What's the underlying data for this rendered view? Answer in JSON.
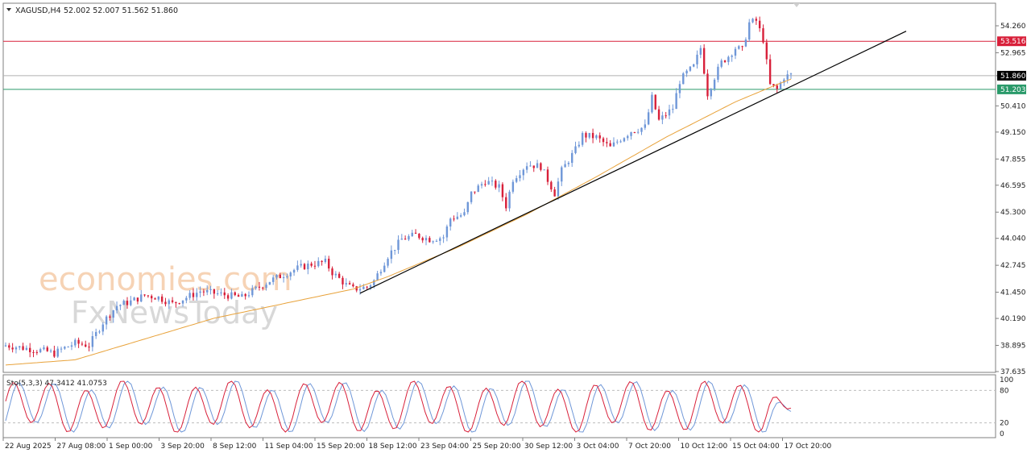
{
  "header": {
    "symbol": "XAGUSD,H4",
    "ohlc": "52.002 52.007 51.562 51.860"
  },
  "watermark": {
    "line1": "economies.com",
    "line2": "FxNewsToday"
  },
  "colors": {
    "bull": "#6f97d8",
    "bear": "#d8203a",
    "ma": "#e8a23a",
    "resistance": "#d8203a",
    "support": "#2a9a6a",
    "current": "#b0b0b0",
    "stoch_main": "#d8203a",
    "stoch_signal": "#6f97d8"
  },
  "chart_data": [
    {
      "type": "candlestick",
      "ylim": [
        37.635,
        55.0
      ],
      "y_ticks": [
        "54.260",
        "52.965",
        "51.860",
        "50.410",
        "49.150",
        "47.855",
        "46.595",
        "45.300",
        "44.040",
        "42.745",
        "41.450",
        "40.190",
        "38.895",
        "37.635"
      ],
      "x_tick_labels": [
        "22 Aug 2025",
        "27 Aug 08:00",
        "1 Sep 00:00",
        "3 Sep 20:00",
        "8 Sep 12:00",
        "11 Sep 04:00",
        "15 Sep 20:00",
        "18 Sep 12:00",
        "23 Sep 04:00",
        "25 Sep 20:00",
        "30 Sep 12:00",
        "3 Oct 04:00",
        "7 Oct 20:00",
        "10 Oct 12:00",
        "15 Oct 04:00",
        "17 Oct 20:00"
      ],
      "current_price": "51.860",
      "resistance_price": "53.516",
      "support_price": "51.203",
      "current_value": 51.86,
      "resistance_value": 53.516,
      "support_value": 51.203,
      "trendline": {
        "from": [
          0,
          41.4
        ],
        "to": [
          206,
          54.0
        ]
      },
      "close_anchors": [
        [
          0,
          38.9
        ],
        [
          8,
          38.7
        ],
        [
          12,
          38.6
        ],
        [
          14,
          38.5
        ],
        [
          16,
          38.7
        ],
        [
          20,
          39.0
        ],
        [
          24,
          38.9
        ],
        [
          28,
          40.0
        ],
        [
          32,
          40.8
        ],
        [
          36,
          41.0
        ],
        [
          40,
          41.3
        ],
        [
          44,
          41.2
        ],
        [
          48,
          40.9
        ],
        [
          52,
          41.2
        ],
        [
          56,
          41.5
        ],
        [
          60,
          41.4
        ],
        [
          64,
          41.3
        ],
        [
          68,
          41.2
        ],
        [
          72,
          41.6
        ],
        [
          76,
          42.0
        ],
        [
          80,
          42.3
        ],
        [
          84,
          42.6
        ],
        [
          88,
          42.8
        ],
        [
          92,
          42.9
        ],
        [
          94,
          42.4
        ],
        [
          98,
          41.8
        ],
        [
          100,
          41.6
        ],
        [
          104,
          41.7
        ],
        [
          106,
          42.0
        ],
        [
          110,
          43.2
        ],
        [
          114,
          44.0
        ],
        [
          118,
          44.2
        ],
        [
          122,
          44.0
        ],
        [
          126,
          44.1
        ],
        [
          128,
          45.0
        ],
        [
          132,
          45.2
        ],
        [
          134,
          46.2
        ],
        [
          138,
          46.8
        ],
        [
          142,
          46.5
        ],
        [
          144,
          45.6
        ],
        [
          146,
          46.9
        ],
        [
          150,
          47.6
        ],
        [
          154,
          47.5
        ],
        [
          158,
          46.2
        ],
        [
          160,
          47.3
        ],
        [
          164,
          48.3
        ],
        [
          166,
          49.0
        ],
        [
          170,
          48.9
        ],
        [
          174,
          48.4
        ],
        [
          176,
          48.7
        ],
        [
          180,
          49.2
        ],
        [
          184,
          49.4
        ],
        [
          186,
          50.8
        ],
        [
          188,
          49.7
        ],
        [
          192,
          50.3
        ],
        [
          194,
          51.6
        ],
        [
          196,
          52.0
        ],
        [
          198,
          52.3
        ],
        [
          200,
          53.2
        ],
        [
          202,
          51.0
        ],
        [
          204,
          51.8
        ],
        [
          206,
          52.5
        ],
        [
          208,
          52.8
        ],
        [
          210,
          53.2
        ],
        [
          212,
          53.1
        ],
        [
          214,
          54.4
        ],
        [
          216,
          54.5
        ],
        [
          218,
          53.6
        ],
        [
          220,
          51.4
        ],
        [
          222,
          51.2
        ],
        [
          224,
          51.8
        ],
        [
          226,
          51.9
        ]
      ],
      "ma_anchors": [
        [
          0,
          37.95
        ],
        [
          20,
          38.2
        ],
        [
          40,
          39.2
        ],
        [
          60,
          40.2
        ],
        [
          80,
          40.9
        ],
        [
          100,
          41.6
        ],
        [
          110,
          42.2
        ],
        [
          130,
          43.6
        ],
        [
          150,
          45.2
        ],
        [
          170,
          47.0
        ],
        [
          190,
          48.9
        ],
        [
          210,
          50.6
        ],
        [
          220,
          51.3
        ],
        [
          226,
          51.7
        ]
      ]
    },
    {
      "type": "line",
      "label": "Sto(5,3,3) 47.3412 41.0753",
      "ylim": [
        0,
        100
      ],
      "y_ticks": [
        "100",
        "80",
        "20",
        "0"
      ],
      "levels": [
        80,
        20
      ],
      "main_phase": 0.25,
      "signal_lag": 1.4,
      "end_values": [
        47.3412,
        41.0753
      ]
    }
  ]
}
